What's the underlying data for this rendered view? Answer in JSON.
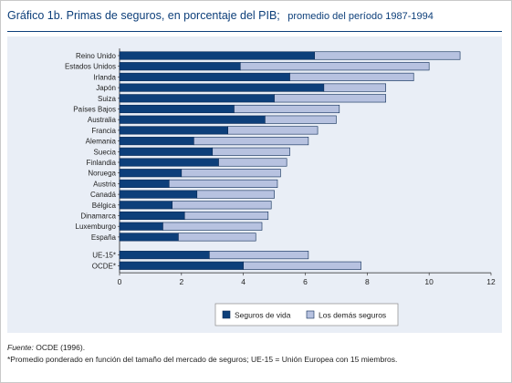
{
  "header": {
    "title": "Gráfico 1b.  Primas de seguros, en porcentaje del PIB;",
    "subtitle": "promedio del período 1987-1994"
  },
  "legend": {
    "items": [
      "Seguros de vida",
      "Los demás seguros"
    ],
    "position": "bottom-center"
  },
  "colors": {
    "seguros_vida": "#0d3f7a",
    "demas_seguros": "#b7c2e0",
    "panel": "#e9eef6",
    "title": "#0d3f7a"
  },
  "footer": {
    "source_label": "Fuente:",
    "source_text": "OCDE (1996).",
    "note": "*Promedio ponderado en función del tamaño del mercado de seguros; UE-15 = Unión Europea con 15 miembros."
  },
  "chart_data": {
    "type": "bar",
    "orientation": "horizontal",
    "stacked": true,
    "title": "Gráfico 1b.  Primas de seguros, en porcentaje del PIB;",
    "subtitle": "promedio del período 1987-1994",
    "xlabel": "",
    "ylabel": "",
    "xlim": [
      0,
      12
    ],
    "xticks": [
      0,
      2,
      4,
      6,
      8,
      10,
      12
    ],
    "grid": false,
    "legend_position": "bottom",
    "categories": [
      "Reino Unido",
      "Estados Unidos",
      "Irlanda",
      "Japón",
      "Suiza",
      "Países Bajos",
      "Australia",
      "Francia",
      "Alemania",
      "Suecia",
      "Finlandia",
      "Noruega",
      "Austria",
      "Canadá",
      "Bélgica",
      "Dinamarca",
      "Luxemburgo",
      "España",
      "UE-15*",
      "OCDE*"
    ],
    "group_gap_before": "UE-15*",
    "series": [
      {
        "name": "Seguros de vida",
        "color": "#0d3f7a",
        "values": [
          6.3,
          3.9,
          5.5,
          6.6,
          5.0,
          3.7,
          4.7,
          3.5,
          2.4,
          3.0,
          3.2,
          2.0,
          1.6,
          2.5,
          1.7,
          2.1,
          1.4,
          1.9,
          2.9,
          4.0
        ]
      },
      {
        "name": "Los demás seguros",
        "color": "#b7c2e0",
        "values": [
          4.7,
          6.1,
          4.0,
          2.0,
          3.6,
          3.4,
          2.3,
          2.9,
          3.7,
          2.5,
          2.2,
          3.2,
          3.5,
          2.5,
          3.2,
          2.7,
          3.2,
          2.5,
          3.2,
          3.8
        ]
      }
    ]
  }
}
